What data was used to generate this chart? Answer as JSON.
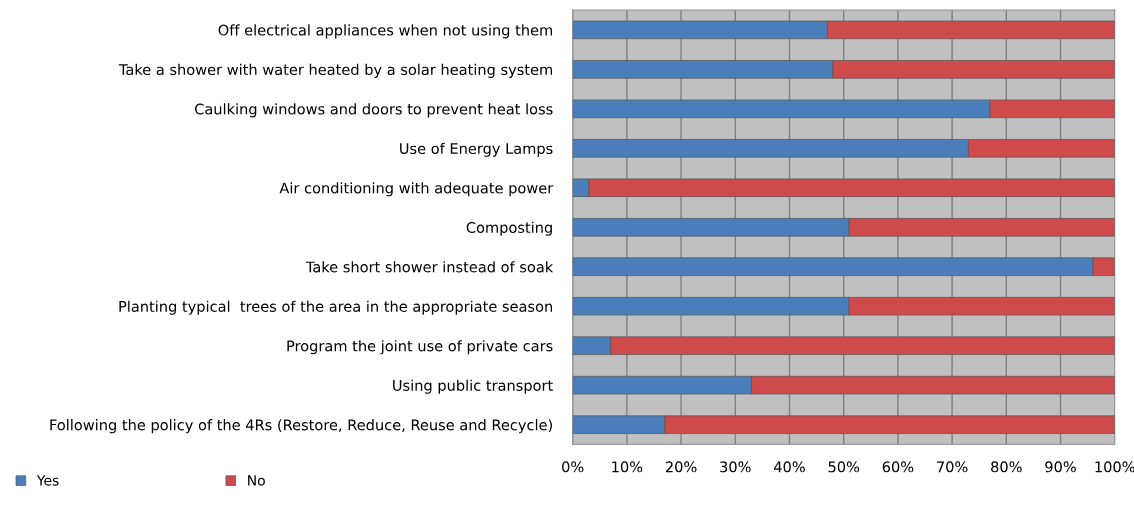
{
  "chart_data": {
    "type": "bar",
    "orientation": "horizontal",
    "stacked": true,
    "categories": [
      "Off electrical appliances when not using them",
      "Take a shower with water heated by a solar heating system",
      "Caulking windows and doors to prevent heat loss",
      "Use of Energy Lamps",
      "Air conditioning with adequate power",
      "Composting",
      "Take short shower instead of soak",
      "Planting typical  trees of the area in the appropriate season",
      "Program the joint use of private cars",
      "Using public transport",
      "Following the policy of the 4Rs (Restore, Reduce, Reuse and Recycle)"
    ],
    "series": [
      {
        "name": "Yes",
        "color": "#4a7ebb",
        "values": [
          47,
          48,
          77,
          73,
          3,
          51,
          96,
          51,
          7,
          33,
          17
        ]
      },
      {
        "name": "No",
        "color": "#cf4a4a",
        "values": [
          53,
          52,
          23,
          27,
          97,
          49,
          4,
          49,
          93,
          67,
          83
        ]
      }
    ],
    "xlim": [
      0,
      100
    ],
    "xticks": [
      {
        "value": 0,
        "label": "0%"
      },
      {
        "value": 10,
        "label": "10%"
      },
      {
        "value": 20,
        "label": "20%"
      },
      {
        "value": 30,
        "label": "30%"
      },
      {
        "value": 40,
        "label": "40%"
      },
      {
        "value": 50,
        "label": "50%"
      },
      {
        "value": 60,
        "label": "60%"
      },
      {
        "value": 70,
        "label": "70%"
      },
      {
        "value": 80,
        "label": "80%"
      },
      {
        "value": 90,
        "label": "90%"
      },
      {
        "value": 100,
        "label": "100%"
      }
    ],
    "grid": "x",
    "legend": "bottom left"
  }
}
